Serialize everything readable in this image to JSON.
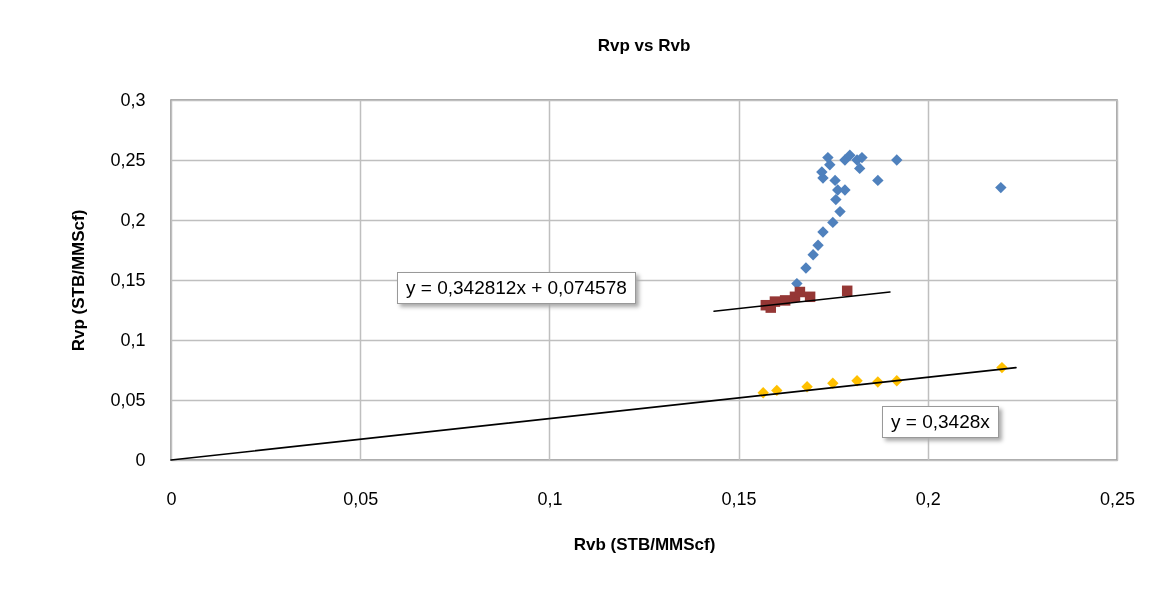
{
  "chart_data": {
    "type": "scatter",
    "title": "Rvp vs Rvb",
    "xlabel": "Rvb     (STB/MMScf)",
    "ylabel": "Rvp     (STB/MMScf)",
    "xlim": [
      0,
      0.25
    ],
    "xticks": [
      0,
      {
        "value": 0.05,
        "label": "0,05"
      },
      {
        "value": 0.1,
        "label": "0,1"
      },
      {
        "value": 0.15,
        "label": "0,15"
      },
      {
        "value": 0.2,
        "label": "0,2"
      },
      {
        "value": 0.25,
        "label": "0,25"
      }
    ],
    "ylim": [
      0,
      0.3
    ],
    "yticks": [
      0,
      {
        "value": 0.05,
        "label": "0,05"
      },
      {
        "value": 0.1,
        "label": "0,1"
      },
      {
        "value": 0.15,
        "label": "0,15"
      },
      {
        "value": 0.2,
        "label": "0,2"
      },
      {
        "value": 0.25,
        "label": "0,25"
      },
      {
        "value": 0.3,
        "label": "0,3"
      }
    ],
    "grid": true,
    "annotations": [
      "y = 0,342812x + 0,074578",
      "y = 0,3428x"
    ],
    "series": [
      {
        "marker": "diamond",
        "color": "#4f81bd",
        "x": [
          0.1654,
          0.1678,
          0.1697,
          0.171,
          0.1723,
          0.1749,
          0.1768,
          0.1757,
          0.1762,
          0.1781,
          0.1755,
          0.1723,
          0.172,
          0.1741,
          0.1736,
          0.1781,
          0.1794,
          0.1813,
          0.1826,
          0.182,
          0.1868,
          0.1918,
          0.2193
        ],
        "values": [
          0.147,
          0.16,
          0.171,
          0.179,
          0.19,
          0.198,
          0.207,
          0.217,
          0.225,
          0.225,
          0.233,
          0.235,
          0.24,
          0.246,
          0.252,
          0.25,
          0.254,
          0.25,
          0.252,
          0.243,
          0.233,
          0.25,
          0.227
        ]
      },
      {
        "marker": "square",
        "color": "#953735",
        "x": [
          0.1572,
          0.1585,
          0.1596,
          0.1623,
          0.1649,
          0.1662,
          0.1689,
          0.1787
        ],
        "values": [
          0.129,
          0.127,
          0.132,
          0.133,
          0.136,
          0.14,
          0.136,
          0.141
        ]
      },
      {
        "marker": "diamond",
        "color": "#ffc000",
        "x": [
          0.1565,
          0.1601,
          0.1681,
          0.1749,
          0.1813,
          0.1868,
          0.1918,
          0.2196
        ],
        "values": [
          0.056,
          0.058,
          0.061,
          0.064,
          0.066,
          0.065,
          0.066,
          0.077
        ]
      },
      {
        "type": "line",
        "marker": "none",
        "color": "#000000",
        "x": [
          0.1435,
          0.19
        ],
        "values": [
          0.124,
          0.14
        ]
      },
      {
        "type": "line",
        "marker": "none",
        "color": "#000000",
        "x": [
          0,
          0.2233
        ],
        "values": [
          0,
          0.077
        ]
      }
    ]
  }
}
